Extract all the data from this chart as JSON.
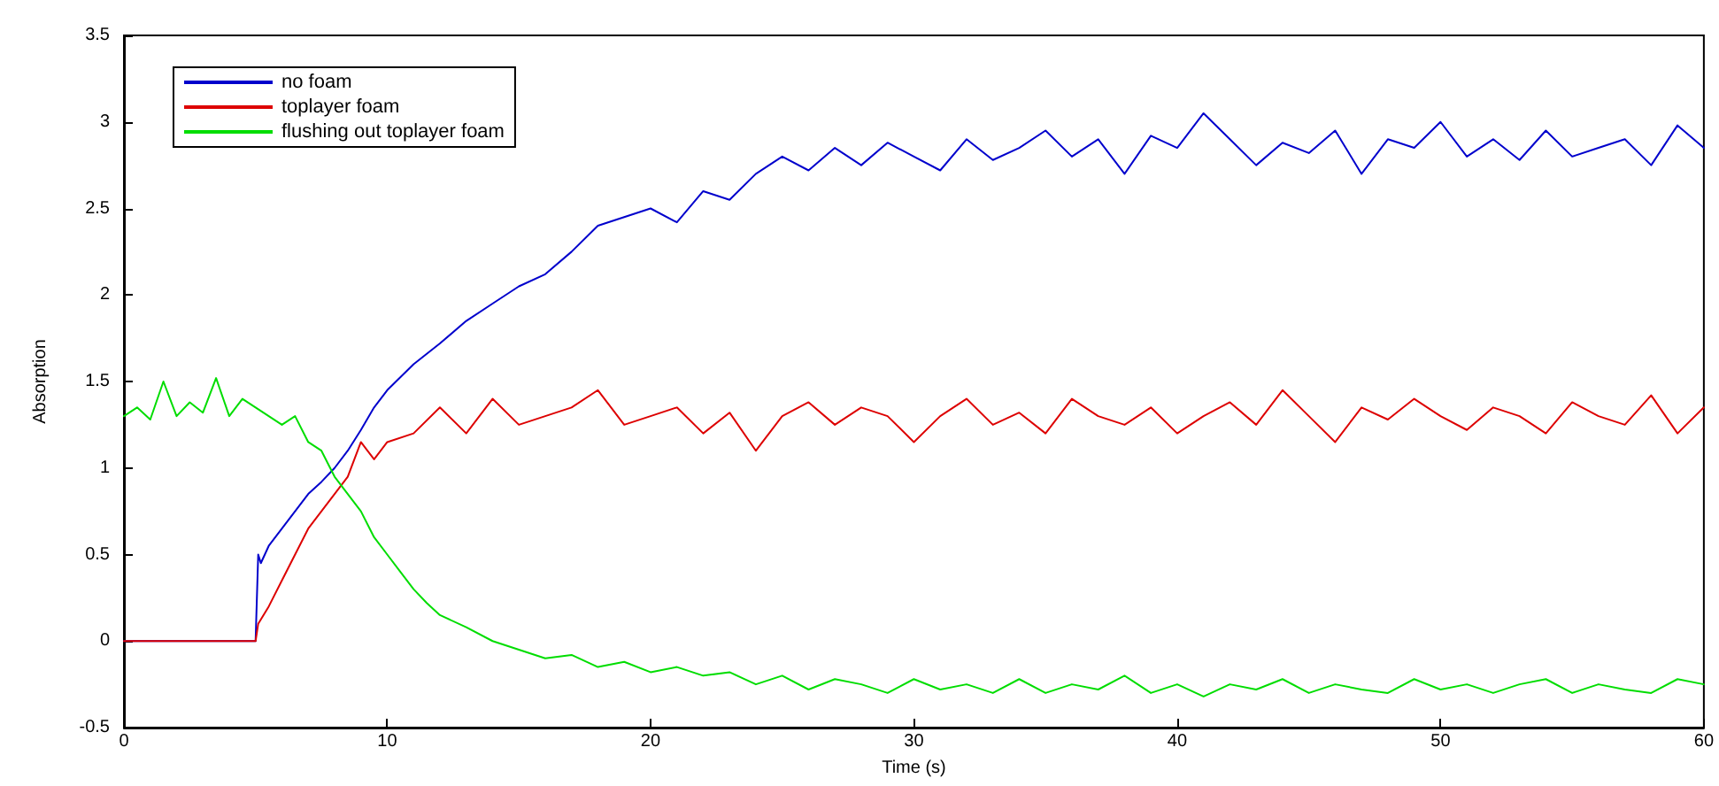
{
  "chart_data": {
    "type": "line",
    "xlabel": "Time (s)",
    "ylabel": "Absorption",
    "xlim": [
      0,
      60
    ],
    "xticks": [
      0,
      10,
      20,
      30,
      40,
      50,
      60
    ],
    "ylim": [
      -0.5,
      3.5
    ],
    "yticks": [
      -0.5,
      0,
      0.5,
      1,
      1.5,
      2,
      2.5,
      3,
      3.5
    ],
    "grid": false,
    "legend": "top left",
    "marker": "none",
    "line_style": "solid",
    "series": [
      {
        "name": "no foam",
        "color": "#0000cc",
        "x": [
          0,
          5,
          5.1,
          5.2,
          5.5,
          6,
          6.5,
          7,
          7.5,
          8,
          8.5,
          9,
          9.5,
          10,
          11,
          12,
          13,
          14,
          15,
          16,
          17,
          18,
          19,
          20,
          21,
          22,
          23,
          24,
          25,
          26,
          27,
          28,
          29,
          30,
          31,
          32,
          33,
          34,
          35,
          36,
          37,
          38,
          39,
          40,
          41,
          42,
          43,
          44,
          45,
          46,
          47,
          48,
          49,
          50,
          51,
          52,
          53,
          54,
          55,
          56,
          57,
          58,
          59,
          60
        ],
        "values": [
          0,
          0,
          0.5,
          0.45,
          0.55,
          0.65,
          0.75,
          0.85,
          0.92,
          1.0,
          1.1,
          1.22,
          1.35,
          1.45,
          1.6,
          1.72,
          1.85,
          1.95,
          2.05,
          2.12,
          2.25,
          2.4,
          2.45,
          2.5,
          2.42,
          2.6,
          2.55,
          2.7,
          2.8,
          2.72,
          2.85,
          2.75,
          2.88,
          2.8,
          2.72,
          2.9,
          2.78,
          2.85,
          2.95,
          2.8,
          2.9,
          2.7,
          2.92,
          2.85,
          3.05,
          2.9,
          2.75,
          2.88,
          2.82,
          2.95,
          2.7,
          2.9,
          2.85,
          3.0,
          2.8,
          2.9,
          2.78,
          2.95,
          2.8,
          2.85,
          2.9,
          2.75,
          2.98,
          2.85
        ]
      },
      {
        "name": "toplayer foam",
        "color": "#dd0000",
        "x": [
          0,
          5,
          5.1,
          5.5,
          6,
          6.5,
          7,
          7.5,
          8,
          8.5,
          9,
          9.5,
          10,
          11,
          12,
          13,
          14,
          15,
          16,
          17,
          18,
          19,
          20,
          21,
          22,
          23,
          24,
          25,
          26,
          27,
          28,
          29,
          30,
          31,
          32,
          33,
          34,
          35,
          36,
          37,
          38,
          39,
          40,
          41,
          42,
          43,
          44,
          45,
          46,
          47,
          48,
          49,
          50,
          51,
          52,
          53,
          54,
          55,
          56,
          57,
          58,
          59,
          60
        ],
        "values": [
          0,
          0,
          0.1,
          0.2,
          0.35,
          0.5,
          0.65,
          0.75,
          0.85,
          0.95,
          1.15,
          1.05,
          1.15,
          1.2,
          1.35,
          1.2,
          1.4,
          1.25,
          1.3,
          1.35,
          1.45,
          1.25,
          1.3,
          1.35,
          1.2,
          1.32,
          1.1,
          1.3,
          1.38,
          1.25,
          1.35,
          1.3,
          1.15,
          1.3,
          1.4,
          1.25,
          1.32,
          1.2,
          1.4,
          1.3,
          1.25,
          1.35,
          1.2,
          1.3,
          1.38,
          1.25,
          1.45,
          1.3,
          1.15,
          1.35,
          1.28,
          1.4,
          1.3,
          1.22,
          1.35,
          1.3,
          1.2,
          1.38,
          1.3,
          1.25,
          1.42,
          1.2,
          1.35
        ]
      },
      {
        "name": "flushing out toplayer foam",
        "color": "#00dd00",
        "x": [
          0,
          0.5,
          1,
          1.5,
          2,
          2.5,
          3,
          3.5,
          4,
          4.5,
          5,
          5.5,
          6,
          6.5,
          7,
          7.5,
          8,
          8.5,
          9,
          9.5,
          10,
          10.5,
          11,
          11.5,
          12,
          13,
          14,
          15,
          16,
          17,
          18,
          19,
          20,
          21,
          22,
          23,
          24,
          25,
          26,
          27,
          28,
          29,
          30,
          31,
          32,
          33,
          34,
          35,
          36,
          37,
          38,
          39,
          40,
          41,
          42,
          43,
          44,
          45,
          46,
          47,
          48,
          49,
          50,
          51,
          52,
          53,
          54,
          55,
          56,
          57,
          58,
          59,
          60
        ],
        "values": [
          1.3,
          1.35,
          1.28,
          1.5,
          1.3,
          1.38,
          1.32,
          1.52,
          1.3,
          1.4,
          1.35,
          1.3,
          1.25,
          1.3,
          1.15,
          1.1,
          0.95,
          0.85,
          0.75,
          0.6,
          0.5,
          0.4,
          0.3,
          0.22,
          0.15,
          0.08,
          0.0,
          -0.05,
          -0.1,
          -0.08,
          -0.15,
          -0.12,
          -0.18,
          -0.15,
          -0.2,
          -0.18,
          -0.25,
          -0.2,
          -0.28,
          -0.22,
          -0.25,
          -0.3,
          -0.22,
          -0.28,
          -0.25,
          -0.3,
          -0.22,
          -0.3,
          -0.25,
          -0.28,
          -0.2,
          -0.3,
          -0.25,
          -0.32,
          -0.25,
          -0.28,
          -0.22,
          -0.3,
          -0.25,
          -0.28,
          -0.3,
          -0.22,
          -0.28,
          -0.25,
          -0.3,
          -0.25,
          -0.22,
          -0.3,
          -0.25,
          -0.28,
          -0.3,
          -0.22,
          -0.25
        ]
      }
    ]
  }
}
